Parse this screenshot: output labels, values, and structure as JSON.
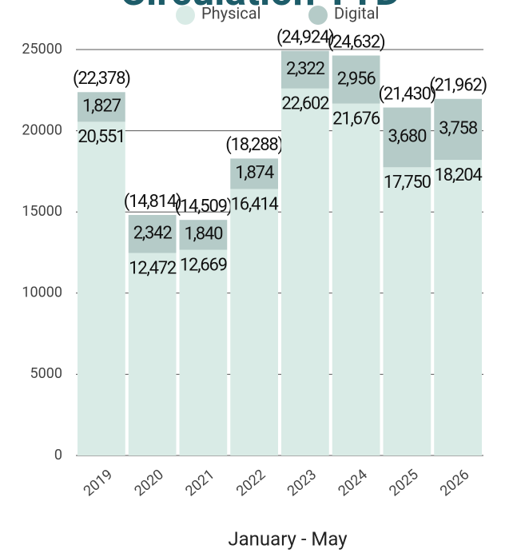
{
  "chart_data": {
    "type": "stacked_bar",
    "title": "Circulation YTD",
    "x_label": "January - May",
    "categories": [
      "2019",
      "2020",
      "2021",
      "2022",
      "2023",
      "2024",
      "2025",
      "2026"
    ],
    "series": [
      {
        "name": "Physical",
        "color": "#d9ebe6",
        "values": [
          20551,
          12472,
          12669,
          16414,
          22602,
          21676,
          17750,
          18204
        ],
        "value_labels": [
          "20,551",
          "12,472",
          "12,669",
          "16,414",
          "22,602",
          "21,676",
          "17,750",
          "18,204"
        ]
      },
      {
        "name": "Digital",
        "color": "#b5cbc8",
        "values": [
          1827,
          2342,
          1840,
          1874,
          2322,
          2956,
          3680,
          3758
        ],
        "value_labels": [
          "1,827",
          "2,342",
          "1,840",
          "1,874",
          "2,322",
          "2,956",
          "3,680",
          "3,758"
        ]
      }
    ],
    "totals": {
      "values": [
        22378,
        14814,
        14509,
        18288,
        24924,
        24632,
        21430,
        21962
      ],
      "value_labels": [
        "(22,378)",
        "(14,814)",
        "(14,509)",
        "(18,288)",
        "(24,924)",
        "(24,632)",
        "(21,430)",
        "(21,962)"
      ]
    },
    "ylim": [
      0,
      25000
    ],
    "yticks": [
      0,
      5000,
      10000,
      15000,
      20000,
      25000
    ],
    "grid": true,
    "legend": "top"
  }
}
